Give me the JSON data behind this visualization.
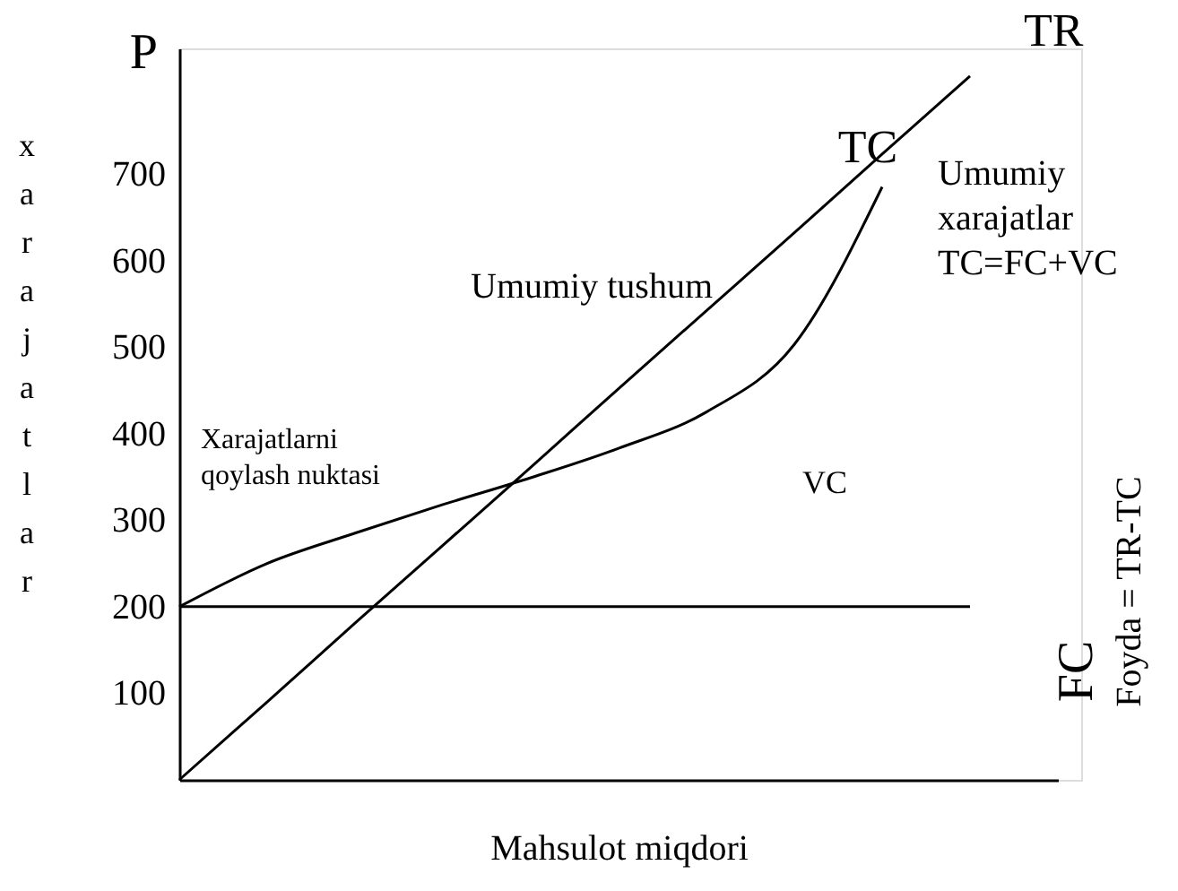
{
  "chart_data": {
    "type": "line",
    "xlabel": "Mahsulot miqdori",
    "ylabel": "xarajatlar",
    "categories": [
      null,
      null,
      null,
      null,
      null,
      null,
      null,
      null,
      null,
      null,
      null
    ],
    "series": [
      {
        "name": "TC",
        "color": "#000000",
        "values": [
          200,
          250,
          285,
          318,
          349,
          383,
          425,
          503,
          685,
          null,
          null
        ]
      },
      {
        "name": "TR",
        "color": "#000000",
        "values": [
          0,
          90,
          181,
          271,
          361,
          452,
          542,
          632,
          723,
          813,
          null
        ]
      },
      {
        "name": "FC",
        "color": "#000000",
        "values": [
          200,
          200,
          200,
          200,
          200,
          200,
          200,
          200,
          200,
          200,
          null
        ]
      }
    ],
    "ylim": [
      0,
      845
    ],
    "yticks": [
      100,
      200,
      300,
      400,
      500,
      600,
      700
    ],
    "tick_labels": "y",
    "grid": false,
    "annotations": [
      "P",
      "Umumiy tushum",
      "Xarajatlarni\nqoylash nuktasi",
      "Umumiy\nxarajatlar\nTC=FC+VC",
      "VC",
      "Foyda = TR-TC"
    ]
  }
}
